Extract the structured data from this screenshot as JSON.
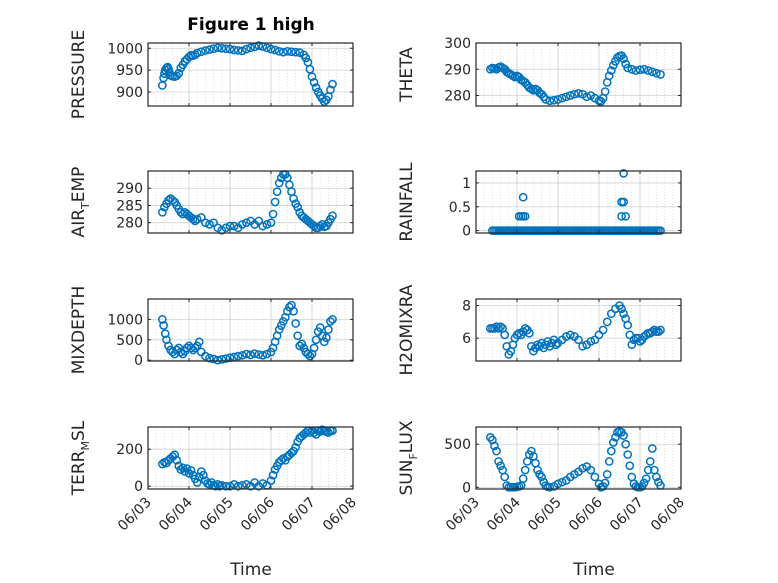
{
  "figure_title": "Figure 1 high",
  "colors": {
    "marker": "#0072BD",
    "axis": "#262626",
    "grid": "#d0d0d0"
  },
  "chart_data": [
    {
      "type": "scatter",
      "label_parts": [
        "PRESSURE"
      ],
      "ylim": [
        868,
        1012
      ],
      "yticks": [
        900,
        950,
        1000
      ],
      "xticks": [
        "06/03",
        "06/04",
        "06/05",
        "06/06",
        "06/07",
        "06/08"
      ],
      "xlim": [
        0,
        5
      ],
      "grid": true,
      "x": [
        0.35,
        0.38,
        0.4,
        0.42,
        0.45,
        0.48,
        0.5,
        0.52,
        0.55,
        0.6,
        0.65,
        0.7,
        0.75,
        0.8,
        0.85,
        0.9,
        0.95,
        1.0,
        1.05,
        1.1,
        1.15,
        1.2,
        1.3,
        1.4,
        1.5,
        1.6,
        1.7,
        1.8,
        1.9,
        2.0,
        2.1,
        2.2,
        2.3,
        2.4,
        2.5,
        2.6,
        2.7,
        2.8,
        2.9,
        3.0,
        3.1,
        3.2,
        3.3,
        3.4,
        3.5,
        3.6,
        3.7,
        3.8,
        3.85,
        3.9,
        3.95,
        4.0,
        4.05,
        4.1,
        4.15,
        4.2,
        4.25,
        4.3,
        4.35,
        4.4,
        4.45,
        4.5
      ],
      "y": [
        915,
        932,
        942,
        950,
        955,
        957,
        952,
        945,
        938,
        936,
        935,
        937,
        943,
        955,
        962,
        970,
        975,
        980,
        984,
        983,
        985,
        989,
        992,
        995,
        997,
        999,
        1001,
        1000,
        999,
        998,
        996,
        995,
        994,
        998,
        1001,
        1003,
        1006,
        1004,
        1001,
        998,
        996,
        993,
        991,
        993,
        992,
        991,
        990,
        985,
        978,
        968,
        952,
        935,
        922,
        910,
        900,
        892,
        885,
        878,
        882,
        890,
        905,
        918
      ]
    },
    {
      "type": "scatter",
      "label_parts": [
        "THETA"
      ],
      "ylim": [
        276,
        300
      ],
      "yticks": [
        280,
        290,
        300
      ],
      "xticks": [
        "06/03",
        "06/04",
        "06/05",
        "06/06",
        "06/07",
        "06/08"
      ],
      "xlim": [
        0,
        5
      ],
      "grid": true,
      "x": [
        0.35,
        0.4,
        0.45,
        0.5,
        0.55,
        0.6,
        0.65,
        0.7,
        0.75,
        0.8,
        0.85,
        0.9,
        0.95,
        1.0,
        1.05,
        1.1,
        1.15,
        1.2,
        1.25,
        1.3,
        1.35,
        1.4,
        1.45,
        1.5,
        1.55,
        1.6,
        1.65,
        1.7,
        1.8,
        1.9,
        2.0,
        2.1,
        2.2,
        2.3,
        2.4,
        2.5,
        2.6,
        2.7,
        2.8,
        2.9,
        3.0,
        3.05,
        3.1,
        3.15,
        3.2,
        3.25,
        3.3,
        3.35,
        3.4,
        3.45,
        3.5,
        3.55,
        3.6,
        3.65,
        3.7,
        3.8,
        3.9,
        4.0,
        4.1,
        4.2,
        4.3,
        4.4,
        4.5
      ],
      "y": [
        290,
        290.5,
        290.3,
        290,
        290.7,
        291,
        290.5,
        290,
        289,
        288.5,
        288,
        287.5,
        287,
        287.5,
        287,
        286,
        285.5,
        285,
        284,
        283,
        282.5,
        282,
        282.5,
        282,
        281,
        280.5,
        279.5,
        278.5,
        278,
        278.2,
        278.5,
        279,
        279.5,
        280,
        280.5,
        280.8,
        280.5,
        279.5,
        280,
        279,
        278,
        277.8,
        279,
        281.5,
        285,
        287.5,
        289.5,
        291.5,
        293,
        294.5,
        295,
        295.2,
        294,
        292,
        290.5,
        290,
        289.5,
        289.8,
        290,
        289.5,
        289,
        288.5,
        288
      ]
    },
    {
      "type": "scatter",
      "label_parts": [
        "AIR",
        "T",
        "EMP"
      ],
      "ylim": [
        277,
        295
      ],
      "yticks": [
        280,
        285,
        290
      ],
      "xticks": [
        "06/03",
        "06/04",
        "06/05",
        "06/06",
        "06/07",
        "06/08"
      ],
      "xlim": [
        0,
        5
      ],
      "grid": true,
      "x": [
        0.35,
        0.4,
        0.45,
        0.5,
        0.55,
        0.6,
        0.65,
        0.7,
        0.75,
        0.8,
        0.85,
        0.9,
        0.95,
        1.0,
        1.05,
        1.1,
        1.15,
        1.2,
        1.3,
        1.4,
        1.5,
        1.6,
        1.7,
        1.8,
        1.9,
        2.0,
        2.1,
        2.2,
        2.3,
        2.4,
        2.5,
        2.6,
        2.7,
        2.8,
        2.9,
        3.0,
        3.05,
        3.1,
        3.15,
        3.2,
        3.25,
        3.3,
        3.35,
        3.4,
        3.45,
        3.5,
        3.55,
        3.6,
        3.65,
        3.7,
        3.75,
        3.8,
        3.85,
        3.9,
        3.95,
        4.0,
        4.05,
        4.1,
        4.15,
        4.2,
        4.25,
        4.3,
        4.35,
        4.4,
        4.45,
        4.5
      ],
      "y": [
        283,
        284.5,
        285.5,
        286.5,
        287,
        286.5,
        286,
        285,
        284,
        283,
        282.5,
        283,
        282.5,
        282,
        281.5,
        281,
        280.5,
        281,
        281.5,
        280,
        279.5,
        280,
        278.5,
        277.8,
        278.5,
        279,
        279,
        278.5,
        279.5,
        280,
        280.5,
        279.5,
        280.5,
        279,
        279.5,
        280,
        282.5,
        286,
        289,
        291.5,
        293,
        294,
        294,
        293,
        291,
        289,
        287,
        285.5,
        284.5,
        283,
        282,
        281.5,
        281,
        280.5,
        280,
        279.5,
        279,
        278.5,
        278.5,
        279,
        279.5,
        278.8,
        279,
        280,
        281,
        282
      ]
    },
    {
      "type": "scatter",
      "label_parts": [
        "RAINFALL"
      ],
      "ylim": [
        -0.05,
        1.25
      ],
      "yticks": [
        0,
        0.5,
        1
      ],
      "xticks": [
        "06/03",
        "06/04",
        "06/05",
        "06/06",
        "06/07",
        "06/08"
      ],
      "xlim": [
        0,
        5
      ],
      "grid": true,
      "x": [
        0.4,
        0.45,
        0.5,
        0.55,
        0.6,
        0.65,
        0.7,
        0.75,
        0.8,
        0.85,
        0.9,
        0.95,
        1.0,
        1.05,
        1.1,
        1.15,
        1.2,
        1.25,
        1.3,
        1.35,
        1.4,
        1.45,
        1.5,
        1.55,
        1.6,
        1.65,
        1.7,
        1.75,
        1.8,
        1.85,
        1.9,
        1.95,
        2.0,
        2.05,
        2.1,
        2.15,
        2.2,
        2.25,
        2.3,
        2.35,
        2.4,
        2.45,
        2.5,
        2.55,
        2.6,
        2.65,
        2.7,
        2.75,
        2.8,
        2.85,
        2.9,
        2.95,
        3.0,
        3.05,
        3.1,
        3.15,
        3.2,
        3.25,
        3.3,
        3.35,
        3.4,
        3.45,
        3.5,
        3.55,
        3.6,
        3.65,
        3.7,
        3.75,
        3.8,
        3.85,
        3.9,
        3.95,
        4.0,
        4.05,
        4.1,
        4.15,
        4.2,
        4.25,
        4.3,
        4.35,
        4.4,
        4.45,
        4.5,
        1.05,
        1.1,
        1.15,
        1.2,
        1.15,
        3.55,
        3.6,
        3.65,
        3.6,
        3.55
      ],
      "y": [
        0,
        0,
        0,
        0,
        0,
        0,
        0,
        0,
        0,
        0,
        0,
        0,
        0,
        0,
        0,
        0,
        0,
        0,
        0,
        0,
        0,
        0,
        0,
        0,
        0,
        0,
        0,
        0,
        0,
        0,
        0,
        0,
        0,
        0,
        0,
        0,
        0,
        0,
        0,
        0,
        0,
        0,
        0,
        0,
        0,
        0,
        0,
        0,
        0,
        0,
        0,
        0,
        0,
        0,
        0,
        0,
        0,
        0,
        0,
        0,
        0,
        0,
        0,
        0,
        0,
        0,
        0,
        0,
        0,
        0,
        0,
        0,
        0,
        0,
        0,
        0,
        0,
        0,
        0,
        0,
        0,
        0,
        0,
        0.3,
        0.3,
        0.3,
        0.3,
        0.7,
        0.3,
        0.6,
        0.3,
        1.2,
        0.6
      ]
    },
    {
      "type": "scatter",
      "label_parts": [
        "MIXDEPTH"
      ],
      "ylim": [
        -20,
        1500
      ],
      "yticks": [
        0,
        500,
        1000
      ],
      "xticks": [
        "06/03",
        "06/04",
        "06/05",
        "06/06",
        "06/07",
        "06/08"
      ],
      "xlim": [
        0,
        5
      ],
      "grid": true,
      "x": [
        0.35,
        0.38,
        0.42,
        0.45,
        0.5,
        0.55,
        0.6,
        0.65,
        0.7,
        0.75,
        0.8,
        0.85,
        0.9,
        0.95,
        1.0,
        1.05,
        1.1,
        1.15,
        1.2,
        1.25,
        1.3,
        1.4,
        1.5,
        1.6,
        1.7,
        1.8,
        1.9,
        2.0,
        2.1,
        2.2,
        2.3,
        2.4,
        2.5,
        2.6,
        2.7,
        2.8,
        2.9,
        3.0,
        3.05,
        3.1,
        3.15,
        3.2,
        3.25,
        3.3,
        3.35,
        3.4,
        3.45,
        3.5,
        3.55,
        3.6,
        3.65,
        3.7,
        3.75,
        3.8,
        3.85,
        3.9,
        3.95,
        4.0,
        4.05,
        4.1,
        4.15,
        4.2,
        4.25,
        4.3,
        4.35,
        4.4,
        4.45,
        4.5
      ],
      "y": [
        1000,
        850,
        650,
        500,
        350,
        250,
        200,
        150,
        250,
        300,
        200,
        150,
        220,
        300,
        350,
        300,
        250,
        300,
        350,
        450,
        200,
        100,
        50,
        30,
        0,
        20,
        40,
        60,
        80,
        100,
        120,
        150,
        130,
        160,
        140,
        120,
        150,
        200,
        300,
        450,
        600,
        750,
        850,
        950,
        1050,
        1200,
        1300,
        1350,
        1200,
        900,
        600,
        350,
        400,
        300,
        200,
        150,
        100,
        150,
        300,
        500,
        700,
        800,
        600,
        450,
        550,
        750,
        950,
        1000
      ]
    },
    {
      "type": "scatter",
      "label_parts": [
        "H2OMIXRA"
      ],
      "ylim": [
        4.6,
        8.4
      ],
      "yticks": [
        6,
        8
      ],
      "xticks": [
        "06/03",
        "06/04",
        "06/05",
        "06/06",
        "06/07",
        "06/08"
      ],
      "xlim": [
        0,
        5
      ],
      "grid": true,
      "x": [
        0.35,
        0.4,
        0.45,
        0.5,
        0.55,
        0.6,
        0.65,
        0.7,
        0.75,
        0.8,
        0.85,
        0.9,
        0.95,
        1.0,
        1.05,
        1.1,
        1.15,
        1.2,
        1.25,
        1.3,
        1.35,
        1.4,
        1.45,
        1.5,
        1.55,
        1.6,
        1.65,
        1.7,
        1.75,
        1.8,
        1.85,
        1.9,
        1.95,
        2.0,
        2.1,
        2.2,
        2.3,
        2.4,
        2.5,
        2.6,
        2.7,
        2.8,
        2.9,
        3.0,
        3.1,
        3.2,
        3.3,
        3.4,
        3.5,
        3.55,
        3.6,
        3.65,
        3.7,
        3.75,
        3.8,
        3.85,
        3.9,
        3.95,
        4.0,
        4.05,
        4.1,
        4.15,
        4.2,
        4.25,
        4.3,
        4.35,
        4.4,
        4.45,
        4.5
      ],
      "y": [
        6.6,
        6.6,
        6.6,
        6.7,
        6.6,
        6.7,
        6.6,
        6.2,
        5.5,
        5,
        5.2,
        5.6,
        6,
        6.2,
        6.3,
        6.2,
        6.4,
        6.6,
        6.5,
        6.3,
        5.5,
        5.2,
        5.4,
        5.6,
        5.5,
        5.7,
        5.4,
        5.6,
        5.8,
        5.5,
        5.7,
        5.9,
        5.6,
        5.7,
        5.9,
        6.1,
        6.2,
        6.1,
        5.9,
        5.5,
        5.6,
        5.8,
        5.9,
        6.2,
        6.5,
        7,
        7.5,
        7.8,
        8,
        7.8,
        7.5,
        7.2,
        6.8,
        6.2,
        5.6,
        5.9,
        6,
        6,
        5.8,
        5.9,
        6.1,
        6.2,
        6.3,
        6.3,
        6.4,
        6.5,
        6.4,
        6.4,
        6.5
      ]
    },
    {
      "type": "scatter",
      "label_parts": [
        "TERR",
        "M",
        "SL"
      ],
      "ylim": [
        -15,
        320
      ],
      "yticks": [
        0,
        200
      ],
      "xticks": [
        "06/03",
        "06/04",
        "06/05",
        "06/06",
        "06/07",
        "06/08"
      ],
      "xlim": [
        0,
        5
      ],
      "grid": true,
      "x": [
        0.35,
        0.4,
        0.45,
        0.5,
        0.55,
        0.6,
        0.65,
        0.7,
        0.75,
        0.8,
        0.85,
        0.9,
        0.95,
        1.0,
        1.05,
        1.1,
        1.15,
        1.2,
        1.25,
        1.3,
        1.35,
        1.4,
        1.45,
        1.5,
        1.55,
        1.6,
        1.65,
        1.7,
        1.75,
        1.8,
        1.9,
        2.0,
        2.1,
        2.2,
        2.3,
        2.4,
        2.5,
        2.6,
        2.7,
        2.8,
        2.9,
        3.0,
        3.05,
        3.1,
        3.15,
        3.2,
        3.25,
        3.3,
        3.35,
        3.4,
        3.45,
        3.5,
        3.55,
        3.6,
        3.65,
        3.7,
        3.75,
        3.8,
        3.85,
        3.9,
        3.95,
        4.0,
        4.05,
        4.1,
        4.15,
        4.2,
        4.25,
        4.3,
        4.35,
        4.4,
        4.45,
        4.5
      ],
      "y": [
        120,
        130,
        125,
        140,
        150,
        160,
        170,
        140,
        110,
        90,
        100,
        80,
        95,
        70,
        85,
        60,
        40,
        20,
        50,
        80,
        60,
        30,
        15,
        10,
        20,
        5,
        0,
        10,
        0,
        5,
        0,
        0,
        10,
        0,
        5,
        10,
        0,
        20,
        0,
        15,
        5,
        30,
        60,
        90,
        110,
        130,
        140,
        150,
        140,
        160,
        170,
        180,
        190,
        210,
        240,
        260,
        270,
        280,
        290,
        300,
        290,
        300,
        290,
        280,
        300,
        295,
        305,
        300,
        295,
        290,
        300,
        300
      ]
    },
    {
      "type": "scatter",
      "label_parts": [
        "SUN",
        "F",
        "LUX"
      ],
      "ylim": [
        -20,
        700
      ],
      "yticks": [
        0,
        500
      ],
      "xticks": [
        "06/03",
        "06/04",
        "06/05",
        "06/06",
        "06/07",
        "06/08"
      ],
      "xlim": [
        0,
        5
      ],
      "grid": true,
      "x": [
        0.35,
        0.4,
        0.45,
        0.5,
        0.55,
        0.6,
        0.65,
        0.7,
        0.75,
        0.8,
        0.85,
        0.9,
        0.95,
        1.0,
        1.05,
        1.1,
        1.15,
        1.2,
        1.25,
        1.3,
        1.35,
        1.4,
        1.45,
        1.5,
        1.55,
        1.6,
        1.65,
        1.7,
        1.75,
        1.8,
        1.9,
        2.0,
        2.1,
        2.2,
        2.3,
        2.4,
        2.5,
        2.6,
        2.7,
        2.8,
        2.9,
        3.0,
        3.05,
        3.1,
        3.15,
        3.2,
        3.25,
        3.3,
        3.35,
        3.4,
        3.45,
        3.5,
        3.55,
        3.6,
        3.65,
        3.7,
        3.75,
        3.8,
        3.85,
        3.9,
        3.95,
        4.0,
        4.05,
        4.1,
        4.15,
        4.2,
        4.25,
        4.3,
        4.35,
        4.4,
        4.45,
        4.5
      ],
      "y": [
        580,
        550,
        480,
        420,
        300,
        250,
        200,
        120,
        20,
        0,
        0,
        0,
        0,
        5,
        10,
        20,
        100,
        200,
        300,
        380,
        420,
        360,
        280,
        200,
        150,
        120,
        60,
        20,
        5,
        0,
        10,
        40,
        60,
        80,
        120,
        150,
        180,
        220,
        240,
        200,
        120,
        40,
        0,
        10,
        50,
        150,
        300,
        420,
        520,
        580,
        640,
        650,
        640,
        600,
        500,
        380,
        250,
        120,
        40,
        10,
        0,
        0,
        10,
        50,
        100,
        200,
        300,
        450,
        200,
        120,
        60,
        20
      ]
    }
  ],
  "xlabel": "Time"
}
